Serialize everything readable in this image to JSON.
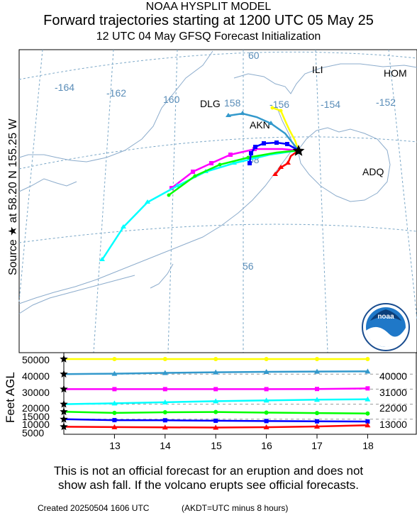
{
  "header": {
    "line1": "NOAA HYSPLIT MODEL",
    "line2": "Forward trajectories starting at 1200 UTC 05 May 25",
    "line3": "12 UTC 04 May     GFSQ  Forecast Initialization"
  },
  "map": {
    "source_label": "Source ★  at    58.20 N  155.25 W",
    "lon_labels": [
      "-164",
      "-162",
      "160",
      "158",
      "-156",
      "-154",
      "-152"
    ],
    "lat_labels": [
      "60",
      "58",
      "56"
    ],
    "places": [
      "ILI",
      "HOM",
      "DLG",
      "AKN",
      "ADQ"
    ],
    "logo_text": "noaa"
  },
  "chart_data": {
    "type": "line",
    "title": "Forward trajectories starting at 1200 UTC 05 May 25",
    "xlabel": "",
    "ylabel": "Feet AGL",
    "x": [
      13,
      14,
      15,
      16,
      17,
      18
    ],
    "x_ticks": [
      "13",
      "14",
      "15",
      "16",
      "17",
      "18"
    ],
    "y_ticks_left": [
      "50000",
      "40000",
      "30000",
      "20000",
      "15000",
      "10000",
      "5000"
    ],
    "y_ticks_right": [
      "40000",
      "31000",
      "22000",
      "13000"
    ],
    "series": [
      {
        "color": "#ffff00",
        "marker": "circle",
        "start_ft": 50000,
        "values": [
          50000,
          50000,
          50000,
          50000,
          50000,
          50000
        ]
      },
      {
        "color": "#3399cc",
        "marker": "triangle",
        "start_ft": 40000,
        "values": [
          40300,
          40800,
          41200,
          41500,
          41700,
          41800
        ]
      },
      {
        "color": "#ff00ff",
        "marker": "square",
        "start_ft": 30000,
        "values": [
          30000,
          30000,
          30000,
          30000,
          30100,
          30500
        ]
      },
      {
        "color": "#00ffff",
        "marker": "triangle",
        "start_ft": 20000,
        "values": [
          20600,
          21300,
          22000,
          22500,
          23000,
          23300
        ]
      },
      {
        "color": "#00ff00",
        "marker": "circle",
        "start_ft": 15000,
        "values": [
          14200,
          14600,
          14800,
          14400,
          14100,
          13800
        ]
      },
      {
        "color": "#0000ff",
        "marker": "square",
        "start_ft": 10000,
        "values": [
          9400,
          9300,
          9000,
          8800,
          8600,
          8500
        ]
      },
      {
        "color": "#ff0000",
        "marker": "triangle",
        "start_ft": 5000,
        "values": [
          4800,
          4600,
          4500,
          4700,
          5200,
          6000
        ]
      }
    ]
  },
  "footer": {
    "disclaimer_line1": "This is not an official forecast for an eruption and does not",
    "disclaimer_line2": "show ash fall. If the volcano erupts see official forecasts.",
    "created": "Created 20250504 1606 UTC",
    "akdt": "(AKDT=UTC minus 8 hours)"
  }
}
